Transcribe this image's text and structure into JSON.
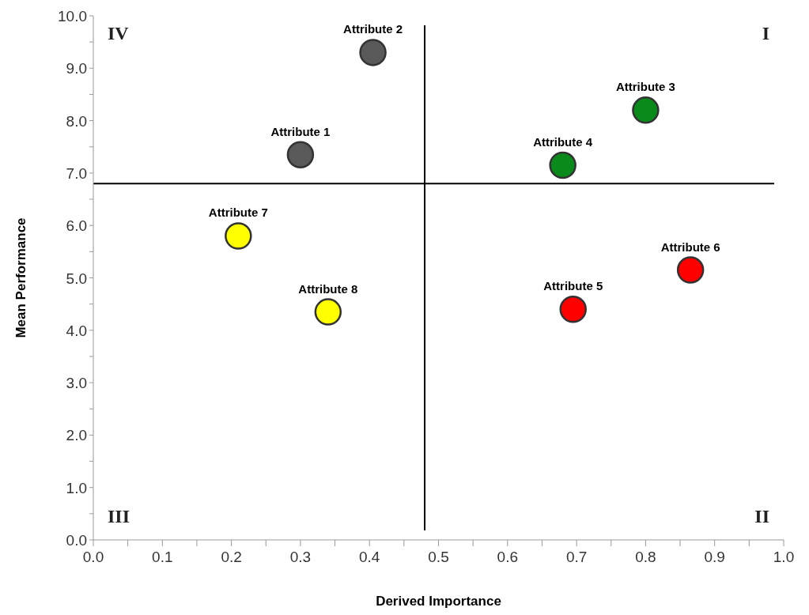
{
  "chart_data": {
    "type": "scatter",
    "xlabel": "Derived Importance",
    "ylabel": "Mean Performance",
    "xlim": [
      0,
      1
    ],
    "ylim": [
      0,
      10
    ],
    "xticks": [
      {
        "value": 0,
        "label": "0.0"
      },
      {
        "value": 0.05,
        "label": null
      },
      {
        "value": 0.1,
        "label": "0.1"
      },
      {
        "value": 0.15,
        "label": null
      },
      {
        "value": 0.2,
        "label": "0.2"
      },
      {
        "value": 0.25,
        "label": null
      },
      {
        "value": 0.3,
        "label": "0.3"
      },
      {
        "value": 0.35,
        "label": null
      },
      {
        "value": 0.4,
        "label": "0.4"
      },
      {
        "value": 0.45,
        "label": null
      },
      {
        "value": 0.5,
        "label": "0.5"
      },
      {
        "value": 0.55,
        "label": null
      },
      {
        "value": 0.6,
        "label": "0.6"
      },
      {
        "value": 0.65,
        "label": null
      },
      {
        "value": 0.7,
        "label": "0.7"
      },
      {
        "value": 0.75,
        "label": null
      },
      {
        "value": 0.8,
        "label": "0.8"
      },
      {
        "value": 0.85,
        "label": null
      },
      {
        "value": 0.9,
        "label": "0.9"
      },
      {
        "value": 0.95,
        "label": null
      },
      {
        "value": 1,
        "label": "1.0"
      }
    ],
    "yticks": [
      {
        "value": 0,
        "label": "0.0"
      },
      {
        "value": 0.5,
        "label": null
      },
      {
        "value": 1,
        "label": "1.0"
      },
      {
        "value": 1.5,
        "label": null
      },
      {
        "value": 2,
        "label": "2.0"
      },
      {
        "value": 2.5,
        "label": null
      },
      {
        "value": 3,
        "label": "3.0"
      },
      {
        "value": 3.5,
        "label": null
      },
      {
        "value": 4,
        "label": "4.0"
      },
      {
        "value": 4.5,
        "label": null
      },
      {
        "value": 5,
        "label": "5.0"
      },
      {
        "value": 5.5,
        "label": null
      },
      {
        "value": 6,
        "label": "6.0"
      },
      {
        "value": 6.5,
        "label": null
      },
      {
        "value": 7,
        "label": "7.0"
      },
      {
        "value": 7.5,
        "label": null
      },
      {
        "value": 8,
        "label": "8.0"
      },
      {
        "value": 8.5,
        "label": null
      },
      {
        "value": 9,
        "label": "9.0"
      },
      {
        "value": 9.5,
        "label": null
      },
      {
        "value": 10,
        "label": "10.0"
      }
    ],
    "marker": "circle",
    "series": [
      {
        "name": "Attribute 1",
        "color": "#595959",
        "x": [
          0.3
        ],
        "values": [
          7.35
        ]
      },
      {
        "name": "Attribute 2",
        "color": "#595959",
        "x": [
          0.405
        ],
        "values": [
          9.3
        ]
      },
      {
        "name": "Attribute 3",
        "color": "#0a8a1a",
        "x": [
          0.8
        ],
        "values": [
          8.2
        ]
      },
      {
        "name": "Attribute 4",
        "color": "#0a8a1a",
        "x": [
          0.68
        ],
        "values": [
          7.15
        ]
      },
      {
        "name": "Attribute 5",
        "color": "#ff0000",
        "x": [
          0.695
        ],
        "values": [
          4.4
        ]
      },
      {
        "name": "Attribute 6",
        "color": "#ff0000",
        "x": [
          0.865
        ],
        "values": [
          5.15
        ]
      },
      {
        "name": "Attribute 7",
        "color": "#ffff00",
        "x": [
          0.21
        ],
        "values": [
          5.8
        ]
      },
      {
        "name": "Attribute 8",
        "color": "#ffff00",
        "x": [
          0.34
        ],
        "values": [
          4.35
        ]
      }
    ],
    "ref_lines": [
      {
        "axis": "x",
        "value": 0.48,
        "color": "#000000"
      },
      {
        "axis": "y",
        "value": 6.8,
        "color": "#000000"
      }
    ],
    "annotations": [
      "IV",
      "I",
      "III",
      "II"
    ]
  }
}
